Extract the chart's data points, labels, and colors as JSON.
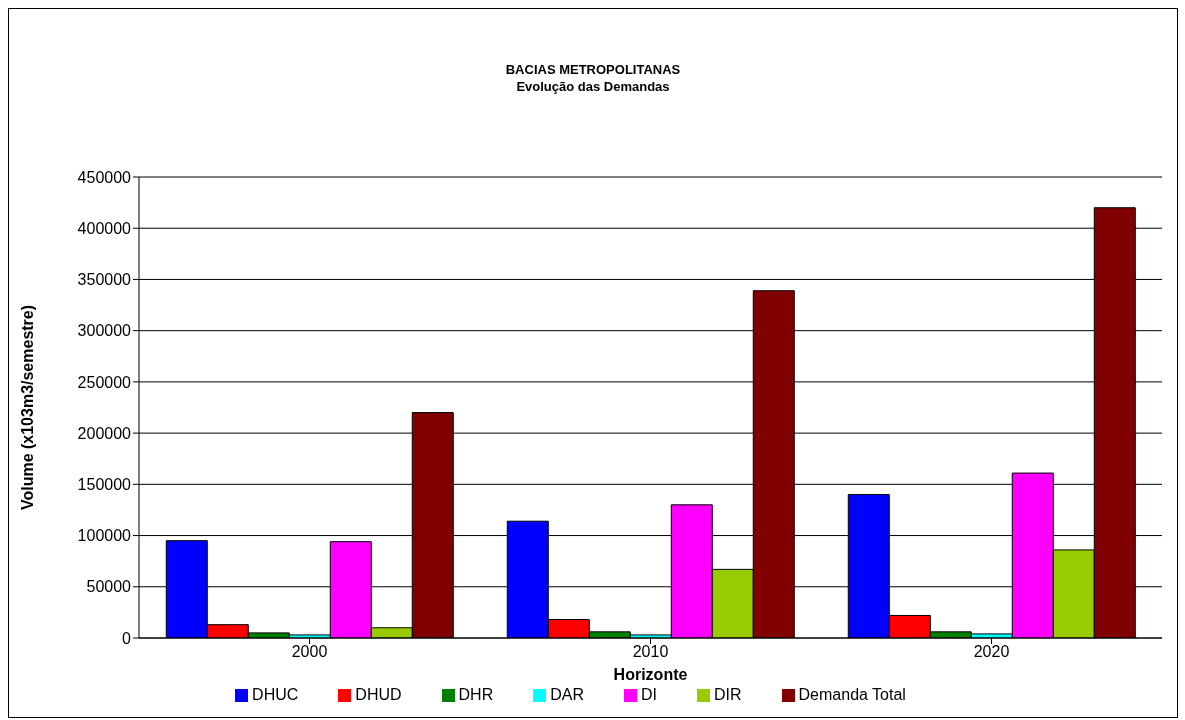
{
  "chart_data": {
    "type": "bar",
    "title": "BACIAS METROPOLITANAS",
    "subtitle": "Evolução das Demandas",
    "xlabel": "Horizonte",
    "ylabel": "Volume (x103m3/semestre)",
    "categories": [
      "2000",
      "2010",
      "2020"
    ],
    "series": [
      {
        "name": "DHUC",
        "color": "#0000ff",
        "values": [
          95000,
          114000,
          140000
        ]
      },
      {
        "name": "DHUD",
        "color": "#ff0000",
        "values": [
          13000,
          18000,
          22000
        ]
      },
      {
        "name": "DHR",
        "color": "#008000",
        "values": [
          5000,
          6000,
          6000
        ]
      },
      {
        "name": "DAR",
        "color": "#00ffff",
        "values": [
          3000,
          3000,
          4000
        ]
      },
      {
        "name": "DI",
        "color": "#ff00ff",
        "values": [
          94000,
          130000,
          161000
        ]
      },
      {
        "name": "DIR",
        "color": "#99cc00",
        "values": [
          10000,
          67000,
          86000
        ]
      },
      {
        "name": "Demanda Total",
        "color": "#800000",
        "values": [
          220000,
          339000,
          420000
        ]
      }
    ],
    "ylim": [
      0,
      450000
    ],
    "yticks": [
      0,
      50000,
      100000,
      150000,
      200000,
      250000,
      300000,
      350000,
      400000,
      450000
    ],
    "grid": "y",
    "legend": "bottom"
  }
}
